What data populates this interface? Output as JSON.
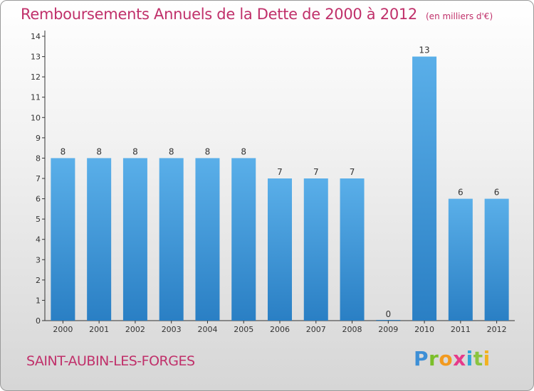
{
  "chart_data": {
    "type": "bar",
    "title": "Remboursements Annuels de la Dette de 2000 à 2012",
    "subtitle": "(en milliers d'€)",
    "categories": [
      "2000",
      "2001",
      "2002",
      "2003",
      "2004",
      "2005",
      "2006",
      "2007",
      "2008",
      "2009",
      "2010",
      "2011",
      "2012"
    ],
    "values": [
      8,
      8,
      8,
      8,
      8,
      8,
      7,
      7,
      7,
      0,
      13,
      6,
      6
    ],
    "ylim": [
      0,
      14
    ],
    "yticks": [
      "0",
      "1",
      "2",
      "3",
      "4",
      "5",
      "6",
      "7",
      "8",
      "9",
      "10",
      "11",
      "12",
      "13",
      "14"
    ],
    "grid": false,
    "bar_color": "#4a9fe0"
  },
  "footer": {
    "commune": "SAINT-AUBIN-LES-FORGES",
    "logo_text": "Proxiti"
  }
}
